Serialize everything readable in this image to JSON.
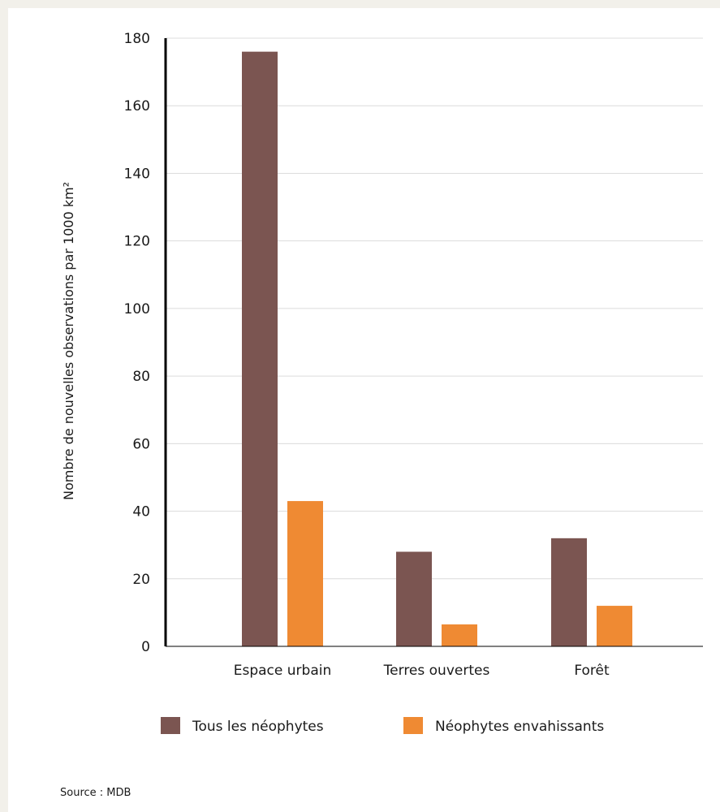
{
  "chart_data": {
    "type": "bar",
    "categories": [
      "Espace urbain",
      "Terres ouvertes",
      "Forêt"
    ],
    "series": [
      {
        "name": "Tous les néophytes",
        "values": [
          176,
          28,
          32
        ],
        "color": "#7b5551"
      },
      {
        "name": "Néophytes envahissants",
        "values": [
          43,
          6.5,
          12
        ],
        "color": "#ef8a33"
      }
    ],
    "ylabel": "Nombre de nouvelles observations par 1000 km²",
    "xlabel": "",
    "ylim": [
      0,
      180
    ],
    "yticks": [
      0,
      20,
      40,
      60,
      80,
      100,
      120,
      140,
      160,
      180
    ],
    "grid": true,
    "legend_position": "bottom",
    "source": "Source : MDB"
  }
}
